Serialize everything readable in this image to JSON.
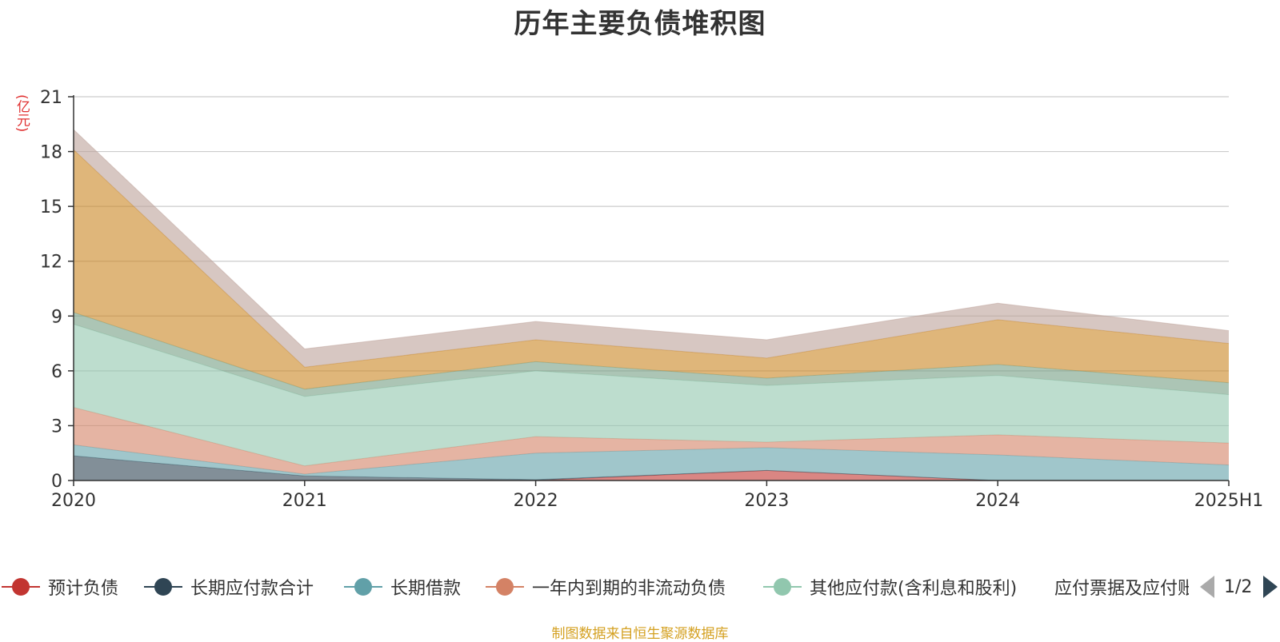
{
  "chart_data": {
    "type": "area",
    "stacked": true,
    "title": "历年主要负债堆积图",
    "unit_label": "(亿元)",
    "categories": [
      "2020",
      "2021",
      "2022",
      "2023",
      "2024",
      "2025H1"
    ],
    "y_ticks": [
      "0",
      "3",
      "6",
      "9",
      "12",
      "15",
      "18",
      "21"
    ],
    "ylim": [
      0,
      21
    ],
    "grid": true,
    "legend_position": "bottom",
    "legend_page": "1/2",
    "series": [
      {
        "name": "预计负债",
        "color": "#c23531",
        "values": [
          0,
          0,
          0,
          0.55,
          0,
          0
        ]
      },
      {
        "name": "长期应付款合计",
        "color": "#2f4554",
        "values": [
          1.35,
          0.25,
          0.05,
          0,
          0,
          0
        ]
      },
      {
        "name": "长期借款",
        "color": "#61a0a8",
        "values": [
          0.6,
          0.1,
          1.45,
          1.25,
          1.4,
          0.85
        ]
      },
      {
        "name": "一年内到期的非流动负债",
        "color": "#d48265",
        "values": [
          2.05,
          0.45,
          0.9,
          0.3,
          1.1,
          1.2
        ]
      },
      {
        "name": "其他应付款(含利息和股利)",
        "color": "#91c7ae",
        "values": [
          4.55,
          3.8,
          3.6,
          3.1,
          3.25,
          2.65
        ]
      },
      {
        "name": "应付票据及应付账款",
        "color": "#749f83",
        "values": [
          0.65,
          0.4,
          0.5,
          0.4,
          0.6,
          0.65
        ]
      },
      {
        "name": "",
        "color": "#ca8622",
        "values": [
          8.9,
          1.2,
          1.2,
          1.1,
          2.45,
          2.15
        ]
      },
      {
        "name": "",
        "color": "#bda29a",
        "values": [
          1.1,
          1.0,
          1.0,
          1.0,
          0.9,
          0.7
        ]
      }
    ]
  },
  "source_note": "制图数据来自恒生聚源数据库"
}
